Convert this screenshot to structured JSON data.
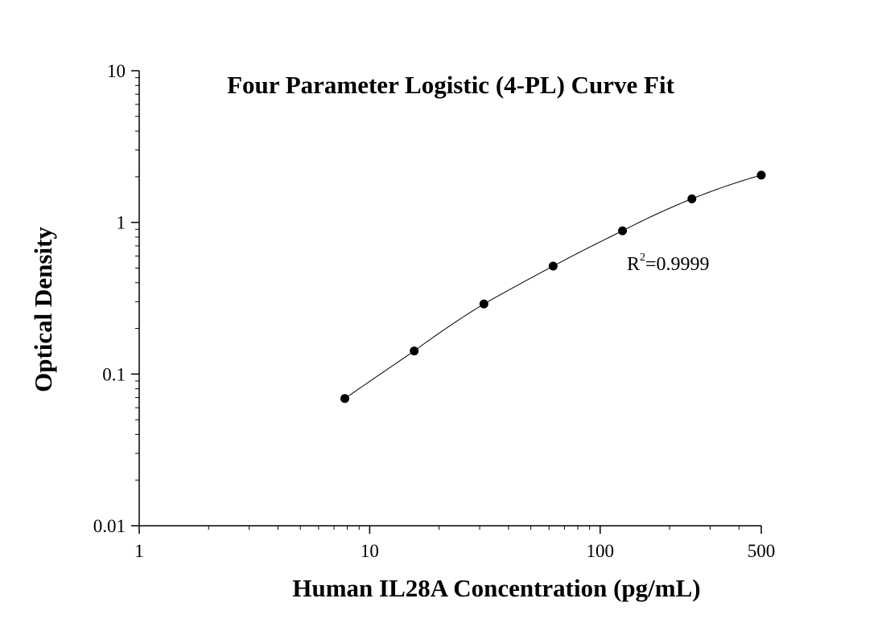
{
  "chart_data": {
    "type": "scatter",
    "title": "Four Parameter Logistic (4-PL) Curve Fit",
    "xlabel": "Human IL28A Concentration (pg/mL)",
    "ylabel": "Optical Density",
    "x_scale": "log",
    "y_scale": "log",
    "xlim": [
      1,
      500
    ],
    "ylim": [
      0.01,
      10
    ],
    "x_ticks": [
      {
        "value": 1,
        "label": "1"
      },
      {
        "value": 10,
        "label": "10"
      },
      {
        "value": 100,
        "label": "100"
      },
      {
        "value": 500,
        "label": "500"
      }
    ],
    "y_ticks": [
      {
        "value": 0.01,
        "label": "0.01"
      },
      {
        "value": 0.1,
        "label": "0.1"
      },
      {
        "value": 1,
        "label": "1"
      },
      {
        "value": 10,
        "label": "10"
      }
    ],
    "grid": false,
    "legend": "none",
    "series": [
      {
        "x": [
          7.8,
          15.6,
          31.3,
          62.5,
          125,
          250,
          500
        ],
        "y": [
          0.069,
          0.142,
          0.29,
          0.515,
          0.88,
          1.43,
          2.05
        ],
        "color": "#000000"
      }
    ],
    "fit_curve": {
      "model": "4PL",
      "x_range": [
        7.8,
        500
      ],
      "color": "#000000"
    },
    "annotation": {
      "base": "R",
      "superscript": "2",
      "value_text": "=0.9999"
    }
  }
}
